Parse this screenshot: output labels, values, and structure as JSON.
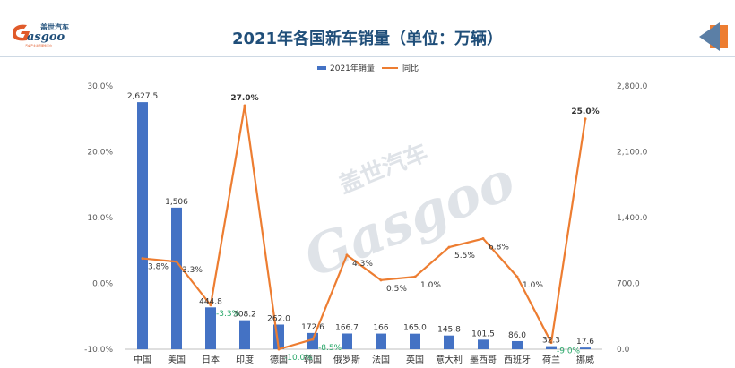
{
  "logo": {
    "brand": "asgoo",
    "brand_cn": "盖世汽车",
    "tagline": "汽车产业资讯服务平台"
  },
  "watermark": {
    "brand": "Gasgoo",
    "brand_cn": "盖世汽车"
  },
  "colors": {
    "bar": "#4472c4",
    "line": "#ed7d31",
    "title": "#1f4e79",
    "negative_label": "#2aa86a"
  },
  "chart_data": {
    "type": "bar",
    "title": "2021年各国新车销量（单位：万辆）",
    "categories": [
      "中国",
      "美国",
      "日本",
      "印度",
      "德国",
      "韩国",
      "俄罗斯",
      "法国",
      "英国",
      "意大利",
      "墨西哥",
      "西班牙",
      "荷兰",
      "挪威"
    ],
    "series": [
      {
        "name": "2021年销量",
        "type": "bar",
        "axis": "right",
        "values": [
          2627.5,
          1506,
          444.8,
          308.2,
          262.0,
          172.6,
          166.7,
          166,
          165.0,
          145.8,
          101.5,
          86.0,
          32.3,
          17.6
        ],
        "labels": [
          "2,627.5",
          "1,506",
          "444.8",
          "308.2",
          "262.0",
          "172.6",
          "166.7",
          "166",
          "165.0",
          "145.8",
          "101.5",
          "86.0",
          "32.3",
          "17.6"
        ]
      },
      {
        "name": "同比",
        "type": "line",
        "axis": "left",
        "values": [
          3.8,
          3.3,
          -3.3,
          27.0,
          -10.0,
          -8.5,
          4.3,
          0.5,
          1.0,
          5.5,
          6.8,
          1.0,
          -9.0,
          25.0
        ],
        "labels": [
          "3.8%",
          "3.3%",
          "-3.3%",
          "27.0%",
          "-10.0%",
          "-8.5%",
          "4.3%",
          "0.5%",
          "1.0%",
          "5.5%",
          "6.8%",
          "1.0%",
          "-9.0%",
          "25.0%"
        ]
      }
    ],
    "left_axis": {
      "ylim": [
        -10,
        30
      ],
      "ticks": [
        "30.0%",
        "20.0%",
        "10.0%",
        "0.0%",
        "-10.0%"
      ],
      "tick_values": [
        30,
        20,
        10,
        0,
        -10
      ]
    },
    "right_axis": {
      "ylim": [
        0,
        2800
      ],
      "ticks": [
        "2,800.0",
        "2,100.0",
        "1,400.0",
        "700.0",
        "0.0"
      ],
      "tick_values": [
        2800,
        2100,
        1400,
        700,
        0
      ]
    },
    "legend": {
      "position": "top",
      "items": [
        "2021年销量",
        "同比"
      ]
    },
    "grid": false
  }
}
